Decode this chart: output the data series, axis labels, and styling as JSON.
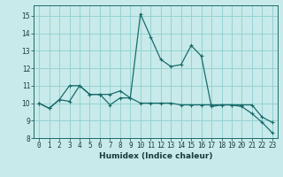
{
  "title": "",
  "xlabel": "Humidex (Indice chaleur)",
  "ylabel": "",
  "background_color": "#c8eaea",
  "grid_color": "#8ecfcf",
  "line_color": "#1a6b6b",
  "xlim": [
    -0.5,
    23.5
  ],
  "ylim": [
    8.0,
    15.6
  ],
  "yticks": [
    8,
    9,
    10,
    11,
    12,
    13,
    14,
    15
  ],
  "xticks": [
    0,
    1,
    2,
    3,
    4,
    5,
    6,
    7,
    8,
    9,
    10,
    11,
    12,
    13,
    14,
    15,
    16,
    17,
    18,
    19,
    20,
    21,
    22,
    23
  ],
  "series1_x": [
    0,
    1,
    2,
    3,
    4,
    5,
    6,
    7,
    8,
    9,
    10,
    11,
    12,
    13,
    14,
    15,
    16,
    17,
    18,
    19,
    20,
    21,
    22,
    23
  ],
  "series1_y": [
    10.0,
    9.7,
    10.2,
    10.1,
    11.0,
    10.5,
    10.5,
    9.9,
    10.3,
    10.3,
    15.1,
    13.8,
    12.5,
    12.1,
    12.2,
    13.3,
    12.7,
    9.8,
    9.9,
    9.9,
    9.8,
    9.4,
    8.9,
    8.3
  ],
  "series2_x": [
    0,
    1,
    2,
    3,
    4,
    5,
    6,
    7,
    8,
    9,
    10,
    11,
    12,
    13,
    14,
    15,
    16,
    17,
    18,
    19,
    20,
    21,
    22,
    23
  ],
  "series2_y": [
    10.0,
    9.7,
    10.2,
    11.0,
    11.0,
    10.5,
    10.5,
    10.5,
    10.7,
    10.3,
    10.0,
    10.0,
    10.0,
    10.0,
    9.9,
    9.9,
    9.9,
    9.9,
    9.9,
    9.9,
    9.9,
    9.9,
    9.2,
    8.9
  ],
  "xlabel_fontsize": 6.5,
  "tick_fontsize": 5.5,
  "spine_color": "#1a6b6b"
}
